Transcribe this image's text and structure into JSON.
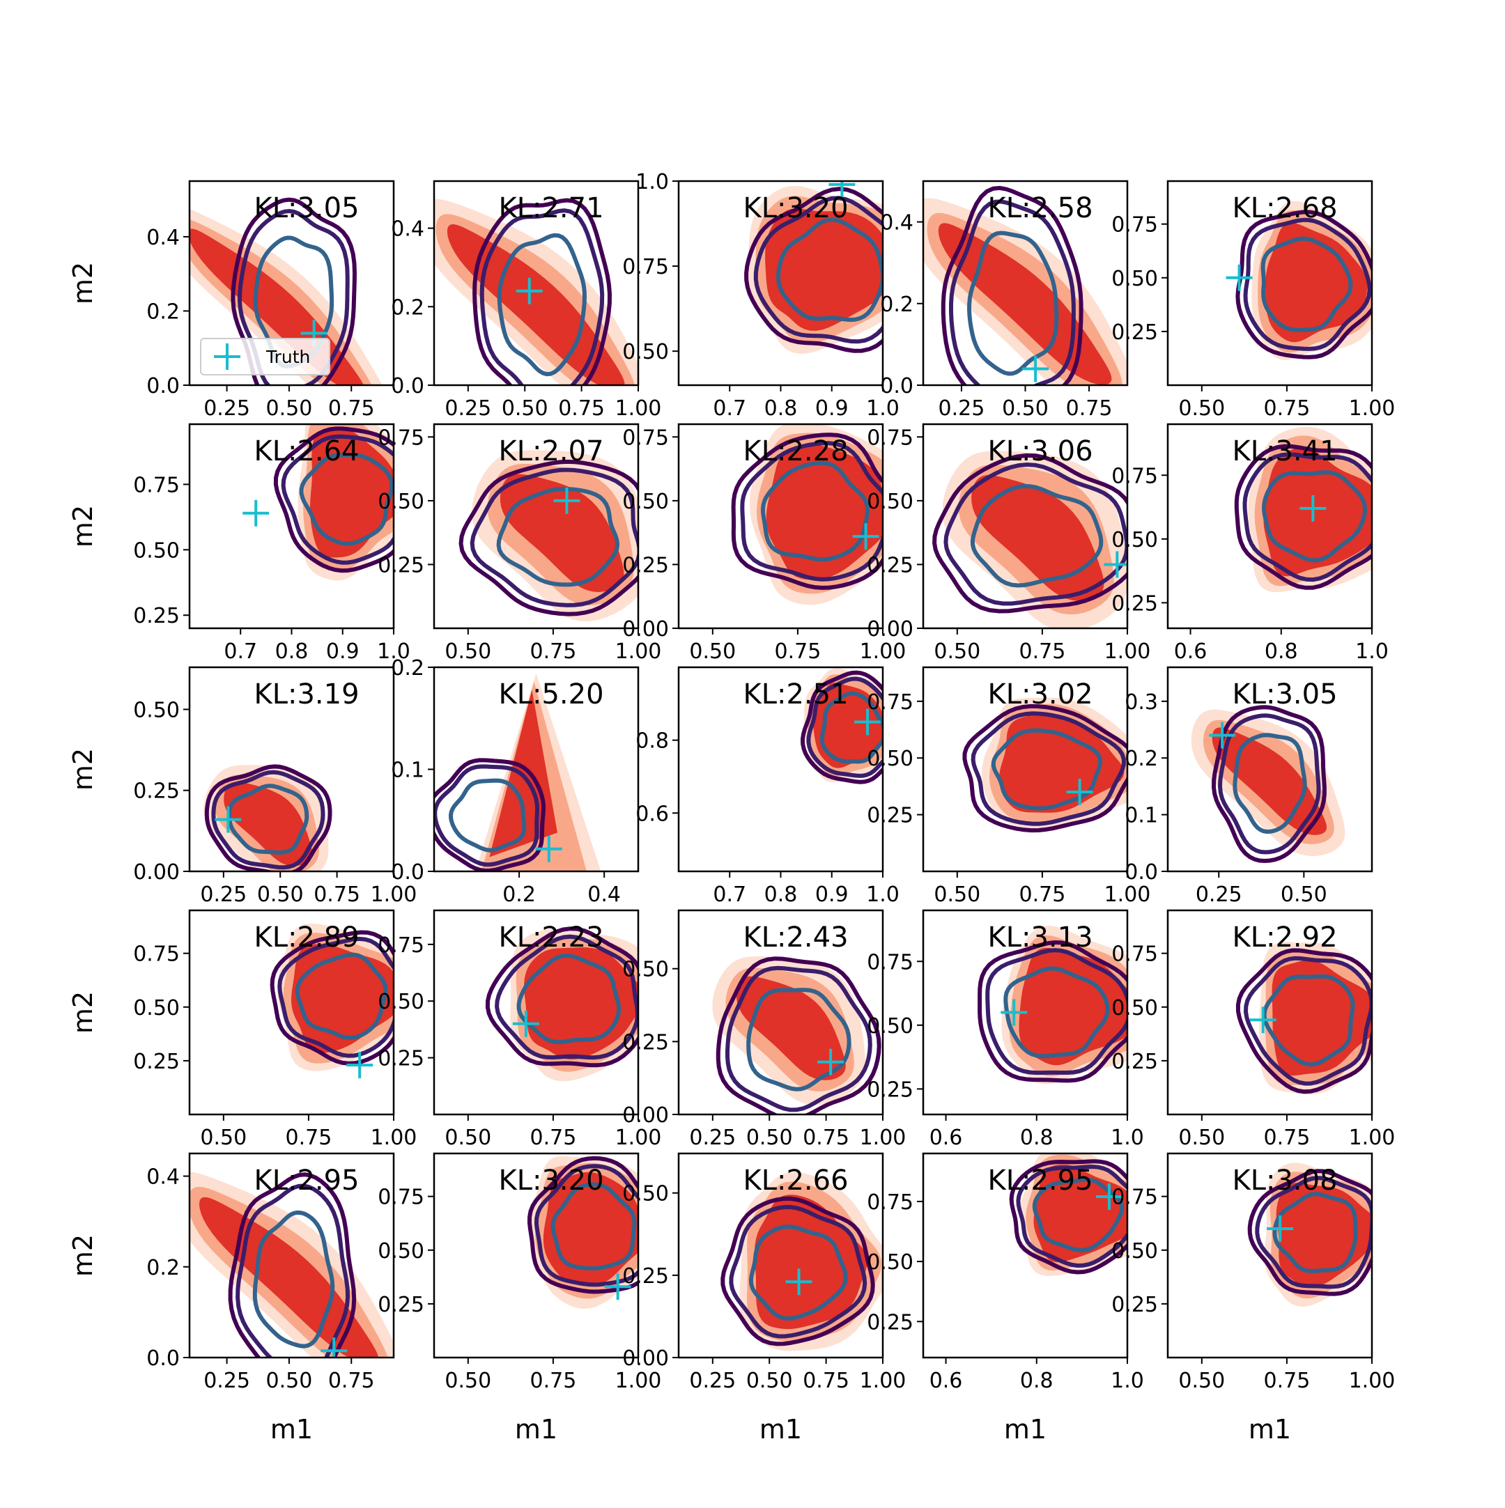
{
  "chart_data": {
    "type": "contour-grid",
    "rows": 5,
    "cols": 5,
    "xlabel": "m1",
    "ylabel": "m2",
    "legend": {
      "label": "Truth",
      "placement": "lower-left of first panel"
    },
    "colors": {
      "fill_light": "#fde0d2",
      "fill_mid": "#f8a889",
      "fill_dark": "#e03228",
      "contour_outer": "#440154",
      "contour_mid": "#3b1e6b",
      "contour_inner": "#33638d",
      "truth_marker": "#17becf",
      "axis": "#000000"
    },
    "panels": [
      {
        "kl": "KL:3.05",
        "xticks": [
          "0.25",
          "0.50",
          "0.75"
        ],
        "xtick_vals": [
          0.25,
          0.5,
          0.75
        ],
        "xlim": [
          0.1,
          0.92
        ],
        "yticks": [
          "0.0",
          "0.2",
          "0.4"
        ],
        "ytick_vals": [
          0.0,
          0.2,
          0.4
        ],
        "ylim": [
          0.0,
          0.55
        ],
        "truth": [
          0.6,
          0.14
        ],
        "shape": "diag",
        "fill": [
          0.45,
          0.2,
          0.16,
          0.34
        ],
        "post": [
          0.52,
          0.23,
          0.18,
          0.2
        ]
      },
      {
        "kl": "KL:2.71",
        "xticks": [
          "0.25",
          "0.50",
          "0.75",
          "1.00"
        ],
        "xtick_vals": [
          0.25,
          0.5,
          0.75,
          1.0
        ],
        "xlim": [
          0.1,
          1.0
        ],
        "yticks": [
          "0.0",
          "0.2",
          "0.4"
        ],
        "ytick_vals": [
          0.0,
          0.2,
          0.4
        ],
        "ylim": [
          0.0,
          0.52
        ],
        "truth": [
          0.52,
          0.24
        ],
        "shape": "diag",
        "fill": [
          0.55,
          0.2,
          0.22,
          0.32
        ],
        "post": [
          0.58,
          0.21,
          0.22,
          0.2
        ]
      },
      {
        "kl": "KL:3.20",
        "xticks": [
          "0.7",
          "0.8",
          "0.9",
          "1.0"
        ],
        "xtick_vals": [
          0.7,
          0.8,
          0.9,
          1.0
        ],
        "xlim": [
          0.6,
          1.0
        ],
        "yticks": [
          "0.50",
          "0.75",
          "1.0"
        ],
        "ytick_vals": [
          0.5,
          0.75,
          1.0
        ],
        "ylim": [
          0.4,
          1.0
        ],
        "truth": [
          0.92,
          0.99
        ],
        "shape": "tri",
        "fill": [
          0.87,
          0.75,
          0.15,
          0.2
        ],
        "post": [
          0.9,
          0.73,
          0.12,
          0.17
        ]
      },
      {
        "kl": "KL:2.58",
        "xticks": [
          "0.25",
          "0.50",
          "0.75"
        ],
        "xtick_vals": [
          0.25,
          0.5,
          0.75
        ],
        "xlim": [
          0.1,
          0.9
        ],
        "yticks": [
          "0.0",
          "0.2",
          "0.4"
        ],
        "ytick_vals": [
          0.0,
          0.2,
          0.4
        ],
        "ylim": [
          0.0,
          0.5
        ],
        "truth": [
          0.54,
          0.04
        ],
        "shape": "diag",
        "fill": [
          0.5,
          0.2,
          0.2,
          0.3
        ],
        "post": [
          0.45,
          0.2,
          0.2,
          0.2
        ]
      },
      {
        "kl": "KL:2.68",
        "xticks": [
          "0.50",
          "0.75",
          "1.00"
        ],
        "xtick_vals": [
          0.5,
          0.75,
          1.0
        ],
        "xlim": [
          0.4,
          1.0
        ],
        "yticks": [
          "0.25",
          "0.50",
          "0.75"
        ],
        "ytick_vals": [
          0.25,
          0.5,
          0.75
        ],
        "ylim": [
          0.0,
          0.95
        ],
        "truth": [
          0.61,
          0.5
        ],
        "shape": "tri",
        "fill": [
          0.8,
          0.47,
          0.17,
          0.3
        ],
        "post": [
          0.8,
          0.47,
          0.15,
          0.25
        ]
      },
      {
        "kl": "KL:2.64",
        "xticks": [
          "0.7",
          "0.8",
          "0.9",
          "1.0"
        ],
        "xtick_vals": [
          0.7,
          0.8,
          0.9,
          1.0
        ],
        "xlim": [
          0.6,
          1.0
        ],
        "yticks": [
          "0.25",
          "0.50",
          "0.75"
        ],
        "ytick_vals": [
          0.25,
          0.5,
          0.75
        ],
        "ylim": [
          0.2,
          0.98
        ],
        "truth": [
          0.73,
          0.64
        ],
        "shape": "tri",
        "fill": [
          0.9,
          0.72,
          0.1,
          0.28
        ],
        "post": [
          0.91,
          0.7,
          0.1,
          0.2
        ]
      },
      {
        "kl": "KL:2.07",
        "xticks": [
          "0.50",
          "0.75",
          "1.00"
        ],
        "xtick_vals": [
          0.5,
          0.75,
          1.0
        ],
        "xlim": [
          0.4,
          1.0
        ],
        "yticks": [
          "0.25",
          "0.50",
          "0.75"
        ],
        "ytick_vals": [
          0.25,
          0.5,
          0.75
        ],
        "ylim": [
          0.0,
          0.8
        ],
        "truth": [
          0.79,
          0.5
        ],
        "shape": "diag",
        "fill": [
          0.78,
          0.38,
          0.24,
          0.3
        ],
        "post": [
          0.77,
          0.36,
          0.2,
          0.22
        ]
      },
      {
        "kl": "KL:2.28",
        "xticks": [
          "0.50",
          "0.75",
          "1.00"
        ],
        "xtick_vals": [
          0.5,
          0.75,
          1.0
        ],
        "xlim": [
          0.4,
          1.0
        ],
        "yticks": [
          "0.00",
          "0.25",
          "0.50",
          "0.75"
        ],
        "ytick_vals": [
          0.0,
          0.25,
          0.5,
          0.75
        ],
        "ylim": [
          0.0,
          0.8
        ],
        "truth": [
          0.95,
          0.36
        ],
        "shape": "tri",
        "fill": [
          0.8,
          0.46,
          0.2,
          0.3
        ],
        "post": [
          0.8,
          0.45,
          0.18,
          0.22
        ]
      },
      {
        "kl": "KL:3.06",
        "xticks": [
          "0.50",
          "0.75",
          "1.00"
        ],
        "xtick_vals": [
          0.5,
          0.75,
          1.0
        ],
        "xlim": [
          0.4,
          1.0
        ],
        "yticks": [
          "0.00",
          "0.25",
          "0.50",
          "0.75"
        ],
        "ytick_vals": [
          0.0,
          0.25,
          0.5,
          0.75
        ],
        "ylim": [
          0.0,
          0.8
        ],
        "truth": [
          0.97,
          0.25
        ],
        "shape": "diag",
        "fill": [
          0.74,
          0.36,
          0.26,
          0.3
        ],
        "post": [
          0.73,
          0.36,
          0.22,
          0.22
        ]
      },
      {
        "kl": "KL:3.41",
        "xticks": [
          "0.6",
          "0.8",
          "1.0"
        ],
        "xtick_vals": [
          0.6,
          0.8,
          1.0
        ],
        "xlim": [
          0.55,
          1.0
        ],
        "yticks": [
          "0.25",
          "0.50",
          "0.75"
        ],
        "ytick_vals": [
          0.25,
          0.5,
          0.75
        ],
        "ylim": [
          0.15,
          0.95
        ],
        "truth": [
          0.87,
          0.62
        ],
        "shape": "tri",
        "fill": [
          0.86,
          0.6,
          0.15,
          0.27
        ],
        "post": [
          0.87,
          0.6,
          0.13,
          0.2
        ]
      },
      {
        "kl": "KL:3.19",
        "xticks": [
          "0.25",
          "0.50",
          "0.75",
          "1.00"
        ],
        "xtick_vals": [
          0.25,
          0.5,
          0.75,
          1.0
        ],
        "xlim": [
          0.1,
          1.0
        ],
        "yticks": [
          "0.00",
          "0.25",
          "0.50"
        ],
        "ytick_vals": [
          0.0,
          0.25,
          0.5
        ],
        "ylim": [
          0.0,
          0.63
        ],
        "truth": [
          0.27,
          0.16
        ],
        "shape": "diag",
        "fill": [
          0.45,
          0.15,
          0.24,
          0.18
        ],
        "post": [
          0.45,
          0.16,
          0.2,
          0.12
        ]
      },
      {
        "kl": "KL:5.20",
        "xticks": [
          "0.2",
          "0.4"
        ],
        "xtick_vals": [
          0.2,
          0.4
        ],
        "xlim": [
          0.0,
          0.48
        ],
        "yticks": [
          "0.0",
          "0.1",
          "0.2"
        ],
        "ytick_vals": [
          0.0,
          0.1,
          0.2
        ],
        "ylim": [
          0.0,
          0.2
        ],
        "truth": [
          0.27,
          0.022
        ],
        "shape": "spike",
        "fill": [
          0.18,
          0.07,
          0.1,
          0.08
        ],
        "post": [
          0.13,
          0.055,
          0.1,
          0.04
        ]
      },
      {
        "kl": "KL:2.51",
        "xticks": [
          "0.7",
          "0.8",
          "0.9",
          "1.0"
        ],
        "xtick_vals": [
          0.7,
          0.8,
          0.9,
          1.0
        ],
        "xlim": [
          0.6,
          1.0
        ],
        "yticks": [
          "0.6",
          "0.8"
        ],
        "ytick_vals": [
          0.6,
          0.8
        ],
        "ylim": [
          0.44,
          1.0
        ],
        "truth": [
          0.97,
          0.85
        ],
        "shape": "tri",
        "fill": [
          0.92,
          0.84,
          0.08,
          0.13
        ],
        "post": [
          0.94,
          0.83,
          0.07,
          0.11
        ]
      },
      {
        "kl": "KL:3.02",
        "xticks": [
          "0.50",
          "0.75",
          "1.00"
        ],
        "xtick_vals": [
          0.5,
          0.75,
          1.0
        ],
        "xlim": [
          0.4,
          1.0
        ],
        "yticks": [
          "0.25",
          "0.50",
          "0.75"
        ],
        "ytick_vals": [
          0.25,
          0.5,
          0.75
        ],
        "ylim": [
          0.0,
          0.9
        ],
        "truth": [
          0.86,
          0.35
        ],
        "shape": "tri",
        "fill": [
          0.76,
          0.47,
          0.2,
          0.25
        ],
        "post": [
          0.76,
          0.45,
          0.18,
          0.2
        ]
      },
      {
        "kl": "KL:3.05",
        "xticks": [
          "0.25",
          "0.50"
        ],
        "xtick_vals": [
          0.25,
          0.5
        ],
        "xlim": [
          0.1,
          0.7
        ],
        "yticks": [
          "0.0",
          "0.1",
          "0.2",
          "0.3"
        ],
        "ytick_vals": [
          0.0,
          0.1,
          0.2,
          0.3
        ],
        "ylim": [
          0.0,
          0.36
        ],
        "truth": [
          0.26,
          0.24
        ],
        "shape": "diag",
        "fill": [
          0.4,
          0.16,
          0.14,
          0.14
        ],
        "post": [
          0.4,
          0.16,
          0.12,
          0.1
        ]
      },
      {
        "kl": "KL:2.89",
        "xticks": [
          "0.50",
          "0.75",
          "1.00"
        ],
        "xtick_vals": [
          0.5,
          0.75,
          1.0
        ],
        "xlim": [
          0.4,
          1.0
        ],
        "yticks": [
          "0.25",
          "0.50",
          "0.75"
        ],
        "ytick_vals": [
          0.25,
          0.5,
          0.75
        ],
        "ylim": [
          0.0,
          0.95
        ],
        "truth": [
          0.9,
          0.23
        ],
        "shape": "tri",
        "fill": [
          0.82,
          0.55,
          0.18,
          0.28
        ],
        "post": [
          0.85,
          0.55,
          0.15,
          0.22
        ]
      },
      {
        "kl": "KL:2.23",
        "xticks": [
          "0.50",
          "0.75",
          "1.00"
        ],
        "xtick_vals": [
          0.5,
          0.75,
          1.0
        ],
        "xlim": [
          0.4,
          1.0
        ],
        "yticks": [
          "0.25",
          "0.50",
          "0.75"
        ],
        "ytick_vals": [
          0.25,
          0.5,
          0.75
        ],
        "ylim": [
          0.0,
          0.9
        ],
        "truth": [
          0.67,
          0.4
        ],
        "shape": "tri",
        "fill": [
          0.8,
          0.5,
          0.2,
          0.28
        ],
        "post": [
          0.8,
          0.5,
          0.17,
          0.22
        ]
      },
      {
        "kl": "KL:2.43",
        "xticks": [
          "0.25",
          "0.50",
          "0.75",
          "1.00"
        ],
        "xtick_vals": [
          0.25,
          0.5,
          0.75,
          1.0
        ],
        "xlim": [
          0.1,
          1.0
        ],
        "yticks": [
          "0.00",
          "0.25",
          "0.50"
        ],
        "ytick_vals": [
          0.0,
          0.25,
          0.5
        ],
        "ylim": [
          0.0,
          0.7
        ],
        "truth": [
          0.77,
          0.18
        ],
        "shape": "diag",
        "fill": [
          0.6,
          0.3,
          0.28,
          0.25
        ],
        "post": [
          0.62,
          0.26,
          0.26,
          0.2
        ]
      },
      {
        "kl": "KL:3.13",
        "xticks": [
          "0.6",
          "0.8",
          "1.0"
        ],
        "xtick_vals": [
          0.6,
          0.8,
          1.0
        ],
        "xlim": [
          0.55,
          1.0
        ],
        "yticks": [
          "0.25",
          "0.50",
          "0.75"
        ],
        "ytick_vals": [
          0.25,
          0.5,
          0.75
        ],
        "ylim": [
          0.15,
          0.95
        ],
        "truth": [
          0.75,
          0.55
        ],
        "shape": "tri",
        "fill": [
          0.86,
          0.57,
          0.15,
          0.25
        ],
        "post": [
          0.84,
          0.55,
          0.13,
          0.2
        ]
      },
      {
        "kl": "KL:2.92",
        "xticks": [
          "0.50",
          "0.75",
          "1.00"
        ],
        "xtick_vals": [
          0.5,
          0.75,
          1.0
        ],
        "xlim": [
          0.4,
          1.0
        ],
        "yticks": [
          "0.25",
          "0.50",
          "0.75"
        ],
        "ytick_vals": [
          0.25,
          0.5,
          0.75
        ],
        "ylim": [
          0.0,
          0.95
        ],
        "truth": [
          0.68,
          0.44
        ],
        "shape": "tri",
        "fill": [
          0.82,
          0.45,
          0.18,
          0.3
        ],
        "post": [
          0.82,
          0.45,
          0.15,
          0.24
        ]
      },
      {
        "kl": "KL:2.95",
        "xticks": [
          "0.25",
          "0.50",
          "0.75"
        ],
        "xtick_vals": [
          0.25,
          0.5,
          0.75
        ],
        "xlim": [
          0.1,
          0.92
        ],
        "yticks": [
          "0.0",
          "0.2",
          "0.4"
        ],
        "ytick_vals": [
          0.0,
          0.2,
          0.4
        ],
        "ylim": [
          0.0,
          0.45
        ],
        "truth": [
          0.68,
          0.015
        ],
        "shape": "diag",
        "fill": [
          0.5,
          0.17,
          0.2,
          0.28
        ],
        "post": [
          0.52,
          0.17,
          0.18,
          0.17
        ]
      },
      {
        "kl": "KL:3.20",
        "xticks": [
          "0.50",
          "0.75",
          "1.00"
        ],
        "xtick_vals": [
          0.5,
          0.75,
          1.0
        ],
        "xlim": [
          0.4,
          1.0
        ],
        "yticks": [
          "0.25",
          "0.50",
          "0.75"
        ],
        "ytick_vals": [
          0.25,
          0.5,
          0.75
        ],
        "ylim": [
          0.0,
          0.95
        ],
        "truth": [
          0.94,
          0.33
        ],
        "shape": "tri",
        "fill": [
          0.84,
          0.6,
          0.17,
          0.3
        ],
        "post": [
          0.87,
          0.6,
          0.14,
          0.23
        ]
      },
      {
        "kl": "KL:2.66",
        "xticks": [
          "0.25",
          "0.50",
          "0.75",
          "1.00"
        ],
        "xtick_vals": [
          0.25,
          0.5,
          0.75,
          1.0
        ],
        "xlim": [
          0.1,
          1.0
        ],
        "yticks": [
          "0.00",
          "0.25",
          "0.50"
        ],
        "ytick_vals": [
          0.0,
          0.25,
          0.5
        ],
        "ylim": [
          0.0,
          0.62
        ],
        "truth": [
          0.63,
          0.23
        ],
        "shape": "tri",
        "fill": [
          0.62,
          0.28,
          0.28,
          0.23
        ],
        "post": [
          0.62,
          0.26,
          0.24,
          0.16
        ]
      },
      {
        "kl": "KL:2.95",
        "xticks": [
          "0.6",
          "0.8",
          "1.0"
        ],
        "xtick_vals": [
          0.6,
          0.8,
          1.0
        ],
        "xlim": [
          0.55,
          1.0
        ],
        "yticks": [
          "0.25",
          "0.50",
          "0.75"
        ],
        "ytick_vals": [
          0.25,
          0.5,
          0.75
        ],
        "ylim": [
          0.1,
          0.95
        ],
        "truth": [
          0.96,
          0.77
        ],
        "shape": "tri",
        "fill": [
          0.88,
          0.7,
          0.13,
          0.22
        ],
        "post": [
          0.89,
          0.7,
          0.11,
          0.17
        ]
      },
      {
        "kl": "KL:3.08",
        "xticks": [
          "0.50",
          "0.75",
          "1.00"
        ],
        "xtick_vals": [
          0.5,
          0.75,
          1.0
        ],
        "xlim": [
          0.4,
          1.0
        ],
        "yticks": [
          "0.25",
          "0.50",
          "0.75"
        ],
        "ytick_vals": [
          0.25,
          0.5,
          0.75
        ],
        "ylim": [
          0.0,
          0.95
        ],
        "truth": [
          0.73,
          0.6
        ],
        "shape": "tri",
        "fill": [
          0.83,
          0.58,
          0.17,
          0.27
        ],
        "post": [
          0.84,
          0.58,
          0.14,
          0.21
        ]
      }
    ]
  }
}
